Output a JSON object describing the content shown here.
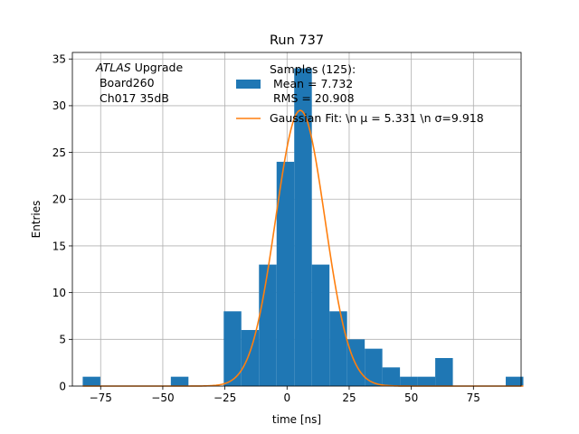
{
  "chart_data": {
    "type": "bar",
    "title": "Run 737",
    "xlabel": "time [ns]",
    "ylabel": "Entries",
    "xlim": [
      -86.38,
      94.18
    ],
    "ylim": [
      0,
      35.7
    ],
    "grid": true,
    "xticks": [
      -75,
      -50,
      -25,
      0,
      25,
      50,
      75
    ],
    "yticks": [
      0,
      5,
      10,
      15,
      20,
      25,
      30,
      35
    ],
    "bin_edges": [
      -82.22,
      -75.13,
      -68.04,
      -60.94,
      -53.85,
      -46.76,
      -39.67,
      -32.57,
      -25.48,
      -18.39,
      -11.3,
      -4.2,
      2.89,
      9.98,
      17.07,
      24.17,
      31.26,
      38.35,
      45.44,
      52.54,
      59.63,
      66.72,
      73.81,
      80.91,
      88.0,
      95.09
    ],
    "counts": [
      1,
      0,
      0,
      0,
      0,
      1,
      0,
      0,
      8,
      6,
      13,
      24,
      34,
      13,
      8,
      5,
      4,
      2,
      1,
      1,
      3,
      0,
      0,
      0,
      1
    ],
    "histogram_color": "#1f77b4",
    "fit": {
      "type": "gaussian",
      "mu": 5.331,
      "sigma": 9.918,
      "amplitude": 29.5,
      "color": "#ff7f0e"
    },
    "legend": {
      "placement": "top-right",
      "entries": [
        {
          "label_lines": [
            "Samples (125):",
            " Mean = 7.732",
            " RMS = 20.908"
          ],
          "marker": "patch"
        },
        {
          "label_lines": [
            "Gaussian Fit: \\n μ = 5.331 \\n σ=9.918"
          ],
          "marker": "line"
        }
      ]
    },
    "annotation": {
      "italic_part": "ATLAS",
      "rest": " Upgrade",
      "line2": " Board260",
      "line3": " Ch017 35dB"
    }
  }
}
